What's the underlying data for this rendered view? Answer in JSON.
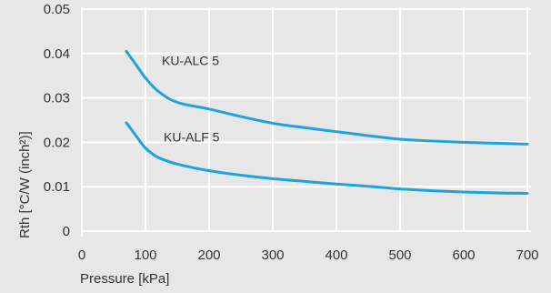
{
  "chart_data": {
    "type": "line",
    "xlabel": "Pressure [kPa]",
    "ylabel": "Rth [°C/W (inch²)]",
    "xlim": [
      0,
      700
    ],
    "ylim": [
      0,
      0.05
    ],
    "xticks": [
      "0",
      "100",
      "200",
      "300",
      "400",
      "500",
      "600",
      "700"
    ],
    "yticks": [
      "0",
      "0.01",
      "0.02",
      "0.03",
      "0.04",
      "0.05"
    ],
    "grid": true,
    "line_color": "#1fa3dc",
    "background": "#e7e7e7",
    "series": [
      {
        "name": "KU-ALC 5",
        "x": [
          70,
          85,
          100,
          120,
          150,
          200,
          250,
          300,
          350,
          400,
          450,
          500,
          550,
          600,
          650,
          700
        ],
        "y": [
          0.0405,
          0.0375,
          0.0345,
          0.0315,
          0.029,
          0.0275,
          0.0258,
          0.0243,
          0.0233,
          0.0224,
          0.0215,
          0.0207,
          0.0203,
          0.02,
          0.0198,
          0.0196
        ]
      },
      {
        "name": "KU-ALF 5",
        "x": [
          70,
          85,
          100,
          120,
          150,
          200,
          250,
          300,
          350,
          400,
          450,
          500,
          550,
          600,
          650,
          700
        ],
        "y": [
          0.0244,
          0.0215,
          0.0187,
          0.0166,
          0.0151,
          0.0136,
          0.0126,
          0.0118,
          0.0112,
          0.0106,
          0.0101,
          0.0095,
          0.0091,
          0.0088,
          0.0086,
          0.0085
        ]
      }
    ]
  }
}
